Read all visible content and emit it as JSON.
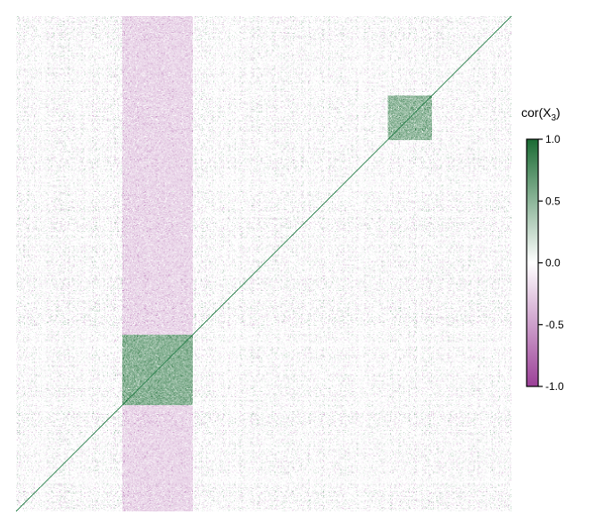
{
  "chart_data": {
    "type": "heatmap",
    "title": "",
    "xlabel": "",
    "ylabel": "",
    "n_variables": 560,
    "value_range": [
      -1.0,
      1.0
    ],
    "diagonal_value": 1.0,
    "block_structure": [
      {
        "rows": [
          120,
          200
        ],
        "cols": [
          120,
          200
        ],
        "mean_cor": 0.85
      },
      {
        "rows": [
          420,
          470
        ],
        "cols": [
          420,
          470
        ],
        "mean_cor": 0.55
      },
      {
        "rows": [
          120,
          200
        ],
        "cols": [
          420,
          470
        ],
        "mean_cor": 0.0
      },
      {
        "rows": [
          0,
          560
        ],
        "cols": [
          120,
          200
        ],
        "mean_cor": -0.25
      }
    ],
    "colorscale": {
      "low": "#9b3f97",
      "mid": "#ffffff",
      "high": "#1a6b33"
    },
    "legend": {
      "title_main": "cor(X",
      "title_sub": "3",
      "title_close": ")",
      "placement": "right",
      "ticks": [
        {
          "value": 1.0,
          "label": "1.0"
        },
        {
          "value": 0.5,
          "label": "0.5"
        },
        {
          "value": 0.0,
          "label": "0.0"
        },
        {
          "value": -0.5,
          "label": "-0.5"
        },
        {
          "value": -1.0,
          "label": "-1.0"
        }
      ]
    },
    "grid": false
  }
}
